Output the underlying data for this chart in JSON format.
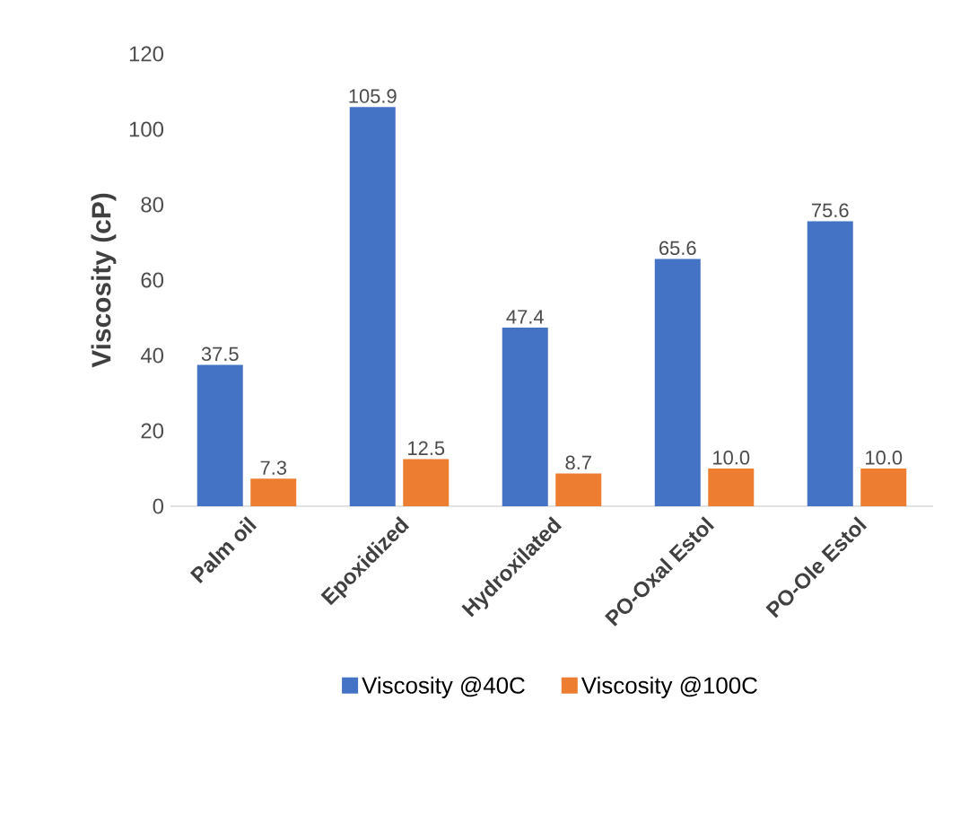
{
  "chart_data": {
    "type": "bar",
    "ylabel": "Viscosity (cP)",
    "categories": [
      "Palm oil",
      "Epoxidized",
      "Hydroxilated",
      "PO-Oxal Estol",
      "PO-Ole Estol"
    ],
    "series": [
      {
        "name": "Viscosity @40C",
        "color": "#4472c4",
        "values": [
          37.5,
          105.9,
          47.4,
          65.6,
          75.6
        ],
        "value_labels": [
          "37.5",
          "105.9",
          "47.4",
          "65.6",
          "75.6"
        ]
      },
      {
        "name": "Viscosity @100C",
        "color": "#ed7d31",
        "values": [
          7.3,
          12.5,
          8.7,
          10.0,
          10.0
        ],
        "value_labels": [
          "7.3",
          "12.5",
          "8.7",
          "10.0",
          "10.0"
        ]
      }
    ],
    "ylim": [
      0,
      120
    ],
    "yticks": [
      0,
      20,
      40,
      60,
      80,
      100,
      120
    ],
    "grid": false,
    "legend": "bottom"
  }
}
